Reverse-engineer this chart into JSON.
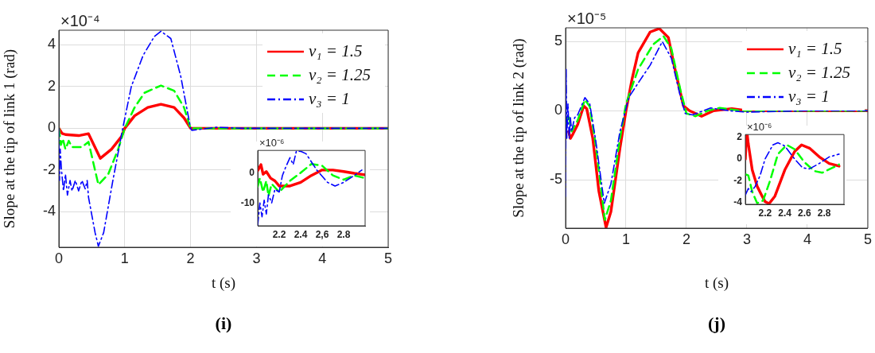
{
  "chart_data": [
    {
      "type": "line",
      "xlabel": "t (s)",
      "ylabel": "Slope at the tip of link 1 (rad)",
      "annotations": [
        "×10⁻⁴",
        "(i)"
      ],
      "xlim": [
        0,
        5
      ],
      "xticks": [
        0,
        1,
        2,
        3,
        4,
        5
      ],
      "ylim": [
        -5.7,
        4.7
      ],
      "yticks": [
        -4,
        -2,
        0,
        2,
        4
      ],
      "grid": true,
      "legend": "top right",
      "series": [
        {
          "name": "ν₁ = 1.5",
          "color": "#ff0000",
          "line_style": "solid",
          "x": [
            0,
            0.05,
            0.1,
            0.3,
            0.45,
            0.63,
            0.8,
            0.95,
            1.0,
            1.15,
            1.35,
            1.55,
            1.75,
            1.9,
            2.0,
            2.2,
            2.5,
            3,
            4,
            5
          ],
          "values": [
            0,
            -0.25,
            -0.3,
            -0.35,
            -0.26,
            -1.44,
            -1.0,
            -0.4,
            0,
            0.6,
            1.0,
            1.15,
            1.0,
            0.5,
            0,
            0,
            0,
            0,
            0,
            0
          ]
        },
        {
          "name": "ν₂ = 1.25",
          "color": "#00ff00",
          "line_style": "dashed",
          "x": [
            0,
            0.03,
            0.06,
            0.1,
            0.15,
            0.2,
            0.35,
            0.45,
            0.6,
            0.75,
            0.9,
            1.0,
            1.15,
            1.3,
            1.55,
            1.75,
            1.9,
            2.0,
            2.3,
            3,
            4,
            5
          ],
          "values": [
            0,
            -0.8,
            -0.5,
            -1.0,
            -0.6,
            -0.9,
            -0.9,
            -0.65,
            -2.7,
            -2.2,
            -1.0,
            0,
            1.0,
            1.7,
            2.05,
            1.8,
            1.0,
            0,
            0,
            0,
            0,
            0
          ]
        },
        {
          "name": "ν₃ = 1",
          "color": "#0000ff",
          "line_style": "dashdot",
          "x": [
            0,
            0.01,
            0.02,
            0.04,
            0.07,
            0.1,
            0.13,
            0.17,
            0.2,
            0.25,
            0.3,
            0.35,
            0.4,
            0.43,
            0.45,
            0.55,
            0.6,
            0.68,
            0.82,
            0.97,
            1.1,
            1.28,
            1.45,
            1.55,
            1.7,
            1.85,
            2.0,
            2.02,
            2.4,
            2.8,
            3,
            4,
            5
          ],
          "values": [
            0,
            -2.5,
            -1.0,
            -2.0,
            -3.0,
            -2.2,
            -3.2,
            -2.5,
            -3.0,
            -2.5,
            -3.0,
            -2.5,
            -2.9,
            -2.5,
            -3.3,
            -5.0,
            -5.65,
            -5.0,
            -2.5,
            0,
            2.0,
            3.5,
            4.4,
            4.65,
            4.3,
            2.5,
            0,
            -0.1,
            0.05,
            0,
            0,
            0,
            0
          ]
        }
      ]
    },
    {
      "type": "line",
      "annotations": [
        "×10⁻⁶"
      ],
      "xlim": [
        2,
        3
      ],
      "xticks": [
        2.2,
        2.4,
        {
          "value": 2.6,
          "label": "2,6"
        },
        2.8
      ],
      "ylim": [
        -17.4,
        7.6
      ],
      "yticks": [
        -10,
        0
      ],
      "grid": false,
      "series": [
        {
          "color": "#ff0000",
          "line_style": "solid",
          "x": [
            2.0,
            2.03,
            2.05,
            2.08,
            2.12,
            2.16,
            2.2,
            2.3,
            2.4,
            2.5,
            2.6,
            2.7,
            2.8,
            2.9,
            3.0
          ],
          "values": [
            0.9,
            2.9,
            -0.3,
            0.6,
            -1.6,
            -2.5,
            -4.2,
            -4.2,
            -3,
            -0.7,
            1.1,
            1.1,
            0.6,
            0,
            -0.5
          ]
        },
        {
          "color": "#00ff00",
          "line_style": "dashed",
          "x": [
            2.0,
            2.02,
            2.05,
            2.08,
            2.1,
            2.13,
            2.2,
            2.3,
            2.4,
            2.5,
            2.6,
            2.7,
            2.8,
            2.9,
            3.0
          ],
          "values": [
            -4.4,
            -1.6,
            -6.2,
            -2.5,
            -7.5,
            -3.5,
            -6.2,
            -2.5,
            0.2,
            3.1,
            2.5,
            -0.7,
            -2.1,
            -0.7,
            -1.6
          ]
        },
        {
          "color": "#0000ff",
          "line_style": "dashdot",
          "x": [
            2.0,
            2.02,
            2.04,
            2.06,
            2.08,
            2.1,
            2.13,
            2.16,
            2.2,
            2.23,
            2.26,
            2.3,
            2.33,
            2.36,
            2.4,
            2.45,
            2.55,
            2.65,
            2.72,
            2.8,
            2.9,
            2.97
          ],
          "values": [
            -17.2,
            -9.8,
            -14.4,
            -8.9,
            -13.5,
            -7.1,
            -9.8,
            -5.3,
            -6.2,
            -0.7,
            2,
            5.2,
            2.9,
            7.4,
            7.3,
            6.5,
            1.1,
            -3.0,
            -4.2,
            -3,
            -0.7,
            1.1
          ]
        }
      ]
    },
    {
      "type": "line",
      "xlabel": "t (s)",
      "ylabel": "Slope at the tip of link 2 (rad)",
      "annotations": [
        "×10⁻⁵",
        "(j)"
      ],
      "xlim": [
        0,
        5
      ],
      "xticks": [
        0,
        1,
        2,
        3,
        4,
        5
      ],
      "ylim": [
        -8.5,
        6
      ],
      "yticks": [
        -5,
        0,
        5
      ],
      "grid": true,
      "legend": "top right",
      "series": [
        {
          "name": "ν₁ = 1.5",
          "color": "#ff0000",
          "line_style": "solid",
          "x": [
            0.05,
            0.08,
            0.12,
            0.2,
            0.3,
            0.35,
            0.45,
            0.55,
            0.67,
            0.75,
            0.9,
            1.0,
            1.1,
            1.2,
            1.4,
            1.55,
            1.7,
            1.8,
            1.95,
            2.05,
            2.25,
            2.45,
            2.75,
            3,
            4,
            5
          ],
          "values": [
            -1.5,
            -2,
            -1.7,
            -1,
            0.35,
            0.15,
            -2,
            -5.8,
            -8.45,
            -7.3,
            -2.7,
            0,
            2.3,
            4.2,
            5.7,
            5.95,
            5.3,
            3.2,
            0.35,
            0,
            -0.4,
            0,
            0.15,
            0,
            0,
            0
          ]
        },
        {
          "name": "ν₂ = 1.25",
          "color": "#00ff00",
          "line_style": "dashed",
          "x": [
            0,
            0.05,
            0.1,
            0.2,
            0.32,
            0.4,
            0.5,
            0.65,
            0.75,
            0.9,
            1.0,
            1.2,
            1.45,
            1.62,
            1.75,
            1.9,
            2.0,
            2.15,
            2.35,
            2.55,
            2.9,
            4,
            5
          ],
          "values": [
            -1,
            -0.3,
            -1.5,
            -0.7,
            0.8,
            0.3,
            -2.5,
            -7.9,
            -6.5,
            -2,
            0.5,
            3.0,
            4.8,
            5.4,
            4.5,
            1.5,
            -0.2,
            -0.4,
            0,
            0.2,
            0,
            0,
            0
          ]
        },
        {
          "name": "ν₃ = 1",
          "color": "#0000ff",
          "line_style": "dashdot",
          "x": [
            0,
            0.01,
            0.02,
            0.04,
            0.06,
            0.08,
            0.1,
            0.15,
            0.2,
            0.32,
            0.4,
            0.5,
            0.64,
            0.75,
            0.9,
            1.05,
            1.2,
            1.4,
            1.6,
            1.75,
            1.9,
            1.98,
            2.1,
            2.4,
            2.7,
            3.0,
            4,
            5
          ],
          "values": [
            -6.2,
            3.0,
            -2,
            0.5,
            -2,
            -0.5,
            -1.5,
            -0.5,
            -0.3,
            0.95,
            0.5,
            -2.2,
            -6.7,
            -5.3,
            -1.5,
            1.0,
            2.0,
            3.3,
            5.0,
            3.8,
            1.0,
            -0.2,
            -0.3,
            0.2,
            0,
            -0.1,
            0,
            0
          ]
        }
      ]
    },
    {
      "type": "line",
      "annotations": [
        "×10⁻⁶"
      ],
      "xlim": [
        2,
        3
      ],
      "xticks": [
        2.2,
        2.4,
        2.6,
        2.8
      ],
      "ylim": [
        -4.15,
        2.25
      ],
      "yticks": [
        -4,
        -2,
        0,
        2
      ],
      "grid": false,
      "series": [
        {
          "color": "#ff0000",
          "line_style": "solid",
          "x": [
            2.0,
            2.01,
            2.02,
            2.03,
            2.07,
            2.12,
            2.17,
            2.2,
            2.24,
            2.3,
            2.4,
            2.5,
            2.57,
            2.65,
            2.75,
            2.85,
            2.95
          ],
          "values": [
            0,
            2.0,
            2.2,
            1.4,
            -1.0,
            -2.5,
            -3.4,
            -3.9,
            -4.1,
            -3.4,
            -1,
            0.7,
            1.3,
            1.0,
            0.2,
            -0.4,
            -0.65
          ]
        },
        {
          "color": "#00ff00",
          "line_style": "dashed",
          "x": [
            2.0,
            2.03,
            2.07,
            2.12,
            2.18,
            2.25,
            2.33,
            2.42,
            2.5,
            2.6,
            2.7,
            2.78,
            2.86,
            2.95
          ],
          "values": [
            -1.4,
            -1.5,
            -3.0,
            -4.05,
            -3.8,
            -2,
            0.45,
            1.3,
            0.9,
            -0.3,
            -1.1,
            -1.25,
            -0.9,
            -0.5
          ]
        },
        {
          "color": "#0000ff",
          "line_style": "dashdot",
          "x": [
            2.0,
            2.03,
            2.06,
            2.1,
            2.15,
            2.2,
            2.28,
            2.33,
            2.4,
            2.5,
            2.58,
            2.65,
            2.75,
            2.85,
            2.95
          ],
          "values": [
            -3.3,
            -2.7,
            -3.0,
            -2.5,
            -1.5,
            0,
            1.3,
            1.5,
            1.2,
            0,
            -0.8,
            -0.9,
            -0.4,
            0.2,
            0.45
          ]
        }
      ]
    }
  ]
}
